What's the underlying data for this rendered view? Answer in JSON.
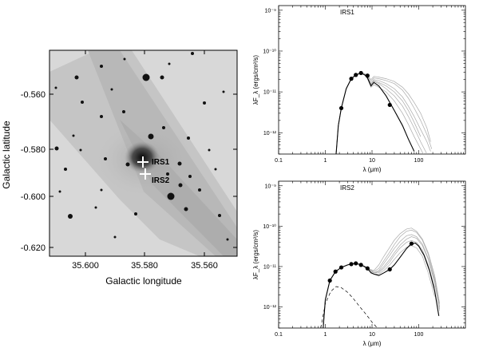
{
  "image_panel": {
    "xlabel": "Galactic longitude",
    "ylabel": "Galactic latitude",
    "xticks": [
      "35.600",
      "35.580",
      "35.560"
    ],
    "yticks": [
      "-0.560",
      "-0.580",
      "-0.600",
      "-0.620"
    ],
    "sources": [
      {
        "label": "IRS1"
      },
      {
        "label": "IRS2"
      }
    ]
  },
  "chart_data": [
    {
      "type": "line",
      "title": "IRS1",
      "xlabel": "λ (μm)",
      "ylabel": "λF_λ (ergs/cm²/s)",
      "x_scale": "log",
      "y_scale": "log",
      "xlim": [
        0.1,
        1000
      ],
      "ylim": [
        3e-13,
        1.3e-09
      ],
      "xticks": [
        "0.1",
        "1",
        "10",
        "100"
      ],
      "yticks": [
        "10⁻⁹",
        "10⁻¹⁰",
        "10⁻¹¹",
        "10⁻¹²"
      ],
      "points": {
        "x": [
          2.2,
          3.6,
          4.5,
          5.8,
          8.0,
          24
        ],
        "y": [
          4e-12,
          2.1e-11,
          2.6e-11,
          2.9e-11,
          2.5e-11,
          4.8e-12
        ]
      },
      "best_fit": {
        "x": [
          1.7,
          1.9,
          2.2,
          2.8,
          3.6,
          4.5,
          5.8,
          7.0,
          8.0,
          9.5,
          11,
          14,
          20,
          30,
          45,
          60,
          80
        ],
        "y": [
          3e-13,
          1.5e-12,
          4e-12,
          1.2e-11,
          2.1e-11,
          2.6e-11,
          2.9e-11,
          2.6e-11,
          2.2e-11,
          1.4e-11,
          1.7e-11,
          1.4e-11,
          8e-12,
          3.5e-12,
          1.5e-12,
          7e-13,
          3.5e-13
        ]
      },
      "grey_fits": [
        {
          "x": [
            1.7,
            1.9,
            2.2,
            2.8,
            3.6,
            4.5,
            5.8,
            7,
            8,
            9.5,
            11,
            14,
            20,
            30,
            45,
            60,
            80,
            110,
            150
          ],
          "y": [
            3e-13,
            1.5e-12,
            4e-12,
            1.2e-11,
            2.1e-11,
            2.6e-11,
            2.9e-11,
            2.6e-11,
            2.2e-11,
            1.4e-11,
            1.8e-11,
            1.6e-11,
            1.2e-11,
            8e-12,
            4.5e-12,
            2.5e-12,
            1.3e-12,
            6e-13,
            3e-13
          ]
        },
        {
          "x": [
            1.7,
            1.9,
            2.2,
            2.8,
            3.6,
            4.5,
            5.8,
            7,
            8,
            9.5,
            11,
            14,
            20,
            30,
            45,
            60,
            80,
            110,
            150,
            180
          ],
          "y": [
            3e-13,
            1.5e-12,
            4e-12,
            1.2e-11,
            2.1e-11,
            2.6e-11,
            2.9e-11,
            2.7e-11,
            2.3e-11,
            1.6e-11,
            2e-11,
            1.9e-11,
            1.6e-11,
            1.2e-11,
            7.5e-12,
            4.5e-12,
            2.5e-12,
            1.2e-12,
            6e-13,
            3.5e-13
          ]
        },
        {
          "x": [
            1.7,
            1.9,
            2.2,
            2.8,
            3.6,
            4.5,
            5.8,
            7,
            8,
            9.5,
            11,
            14,
            20,
            30,
            45,
            60,
            80,
            110,
            150,
            190
          ],
          "y": [
            3e-13,
            1.5e-12,
            4e-12,
            1.2e-11,
            2.1e-11,
            2.6e-11,
            2.9e-11,
            2.7e-11,
            2.4e-11,
            1.8e-11,
            2.2e-11,
            2.1e-11,
            1.9e-11,
            1.6e-11,
            1.1e-11,
            7e-12,
            4e-12,
            2e-12,
            9e-13,
            4e-13
          ]
        },
        {
          "x": [
            1.7,
            1.9,
            2.2,
            2.8,
            3.6,
            4.5,
            5.8,
            7,
            8,
            9.5,
            11,
            14,
            20,
            30,
            45,
            60,
            80,
            110,
            150
          ],
          "y": [
            3e-13,
            1.5e-12,
            4e-12,
            1.2e-11,
            2.1e-11,
            2.6e-11,
            2.9e-11,
            2.6e-11,
            2.1e-11,
            1.3e-11,
            1.5e-11,
            1.3e-11,
            1e-11,
            6e-12,
            3e-12,
            1.6e-12,
            8e-13,
            4e-13,
            2e-13
          ]
        },
        {
          "x": [
            1.7,
            1.9,
            2.2,
            2.8,
            3.6,
            4.5,
            5.8,
            7,
            8,
            9.5,
            11,
            14,
            20,
            30,
            45,
            60,
            80,
            110,
            150,
            180
          ],
          "y": [
            3e-13,
            1.5e-12,
            4e-12,
            1.2e-11,
            2.1e-11,
            2.6e-11,
            2.9e-11,
            2.8e-11,
            2.5e-11,
            2e-11,
            2.4e-11,
            2.3e-11,
            2.1e-11,
            1.8e-11,
            1.3e-11,
            9e-12,
            5.5e-12,
            3e-12,
            1.3e-12,
            6e-13
          ]
        },
        {
          "x": [
            1.7,
            1.9,
            2.2,
            2.8,
            3.6,
            4.5,
            5.8,
            7,
            8,
            9.5,
            11,
            14,
            20,
            30,
            45,
            60,
            80,
            110
          ],
          "y": [
            3e-13,
            1.5e-12,
            4e-12,
            1.2e-11,
            2.1e-11,
            2.6e-11,
            2.9e-11,
            2.6e-11,
            2.2e-11,
            1.5e-11,
            1.9e-11,
            1.7e-11,
            1.4e-11,
            1e-11,
            6e-12,
            3.5e-12,
            1.8e-12,
            8e-13
          ]
        }
      ]
    },
    {
      "type": "line",
      "title": "IRS2",
      "xlabel": "λ (μm)",
      "ylabel": "λF_λ (ergs/cm²/s)",
      "x_scale": "log",
      "y_scale": "log",
      "xlim": [
        0.1,
        1000
      ],
      "ylim": [
        3e-13,
        1.3e-09
      ],
      "xticks": [
        "0.1",
        "1",
        "10",
        "100"
      ],
      "yticks": [
        "10⁻⁹",
        "10⁻¹⁰",
        "10⁻¹¹",
        "10⁻¹²"
      ],
      "points": {
        "x": [
          1.25,
          1.65,
          2.2,
          3.6,
          4.5,
          5.8,
          8.0,
          24,
          70
        ],
        "y": [
          4.5e-12,
          7.5e-12,
          9.5e-12,
          1.15e-11,
          1.2e-11,
          1.1e-11,
          9e-12,
          8.5e-12,
          3.7e-11
        ]
      },
      "best_fit": {
        "x": [
          0.9,
          1.0,
          1.25,
          1.65,
          2.2,
          3.0,
          3.6,
          4.5,
          5.8,
          7,
          8,
          9.5,
          11,
          14,
          18,
          24,
          30,
          40,
          55,
          70,
          85,
          100,
          130,
          170,
          220,
          270
        ],
        "y": [
          3e-13,
          1.5e-12,
          4.5e-12,
          7.5e-12,
          9.5e-12,
          1.1e-11,
          1.15e-11,
          1.2e-11,
          1.1e-11,
          1e-11,
          9e-12,
          7e-12,
          6.5e-12,
          6e-12,
          7e-12,
          8.5e-12,
          1.1e-11,
          1.7e-11,
          2.8e-11,
          3.7e-11,
          3.8e-11,
          3.2e-11,
          1.9e-11,
          8e-12,
          2.5e-12,
          6e-13
        ]
      },
      "grey_fits": [
        {
          "x": [
            0.9,
            1.0,
            1.25,
            1.65,
            2.2,
            3.0,
            4.5,
            5.8,
            8,
            11,
            14,
            18,
            24,
            30,
            40,
            55,
            70,
            90,
            120,
            160,
            220,
            280
          ],
          "y": [
            3e-13,
            1.5e-12,
            4.5e-12,
            7.5e-12,
            9.5e-12,
            1.1e-11,
            1.2e-11,
            1.1e-11,
            9e-12,
            7e-12,
            7.5e-12,
            1e-11,
            1.5e-11,
            2.2e-11,
            3.4e-11,
            4.8e-11,
            5.5e-11,
            5e-11,
            3.3e-11,
            1.5e-11,
            4e-12,
            8e-13
          ]
        },
        {
          "x": [
            0.9,
            1.0,
            1.25,
            1.65,
            2.2,
            3.0,
            4.5,
            5.8,
            8,
            11,
            14,
            18,
            24,
            30,
            40,
            55,
            70,
            90,
            120,
            160,
            220,
            280
          ],
          "y": [
            3e-13,
            1.5e-12,
            4.5e-12,
            7.5e-12,
            9.5e-12,
            1.1e-11,
            1.2e-11,
            1.1e-11,
            9e-12,
            7.5e-12,
            9e-12,
            1.4e-11,
            2.3e-11,
            3.5e-11,
            5.5e-11,
            7.5e-11,
            8e-11,
            7e-11,
            4.5e-11,
            2e-11,
            5e-12,
            1e-12
          ]
        },
        {
          "x": [
            0.9,
            1.0,
            1.25,
            1.65,
            2.2,
            3.0,
            4.5,
            5.8,
            8,
            11,
            14,
            18,
            24,
            30,
            40,
            55,
            70,
            90,
            120,
            160,
            220,
            280
          ],
          "y": [
            3e-13,
            1.5e-12,
            4.5e-12,
            7.5e-12,
            9.5e-12,
            1.1e-11,
            1.2e-11,
            1.1e-11,
            9e-12,
            8e-12,
            1.1e-11,
            1.8e-11,
            3e-11,
            4.5e-11,
            6.5e-11,
            8.5e-11,
            9e-11,
            7.5e-11,
            4.8e-11,
            2.2e-11,
            6e-12,
            1.2e-12
          ]
        },
        {
          "x": [
            0.9,
            1.0,
            1.25,
            1.65,
            2.2,
            3.0,
            4.5,
            5.8,
            8,
            11,
            14,
            18,
            24,
            30,
            40,
            55,
            70,
            90,
            120,
            160,
            220
          ],
          "y": [
            3e-13,
            1.5e-12,
            4.5e-12,
            7.5e-12,
            9.5e-12,
            1.1e-11,
            1.2e-11,
            1.1e-11,
            8.5e-12,
            6.5e-12,
            6.5e-12,
            8e-12,
            1.1e-11,
            1.5e-11,
            2.2e-11,
            3e-11,
            3.3e-11,
            2.9e-11,
            1.8e-11,
            7e-12,
            1.8e-12
          ]
        },
        {
          "x": [
            0.9,
            1.0,
            1.25,
            1.65,
            2.2,
            3.0,
            4.5,
            5.8,
            8,
            11,
            14,
            18,
            24,
            30,
            40,
            55,
            70,
            90,
            120,
            160,
            220,
            280
          ],
          "y": [
            3e-13,
            1.5e-12,
            4.5e-12,
            7.5e-12,
            9.5e-12,
            1.1e-11,
            1.2e-11,
            1.1e-11,
            9e-12,
            7e-12,
            8e-12,
            1.2e-11,
            1.9e-11,
            2.8e-11,
            4.2e-11,
            5.8e-11,
            6.2e-11,
            5.5e-11,
            3.6e-11,
            1.6e-11,
            4.5e-12,
            9e-13
          ]
        },
        {
          "x": [
            0.9,
            1.0,
            1.25,
            1.65,
            2.2,
            3.0,
            4.5,
            5.8,
            8,
            11,
            14,
            18,
            24,
            30,
            40,
            55,
            70,
            90,
            120,
            160,
            220
          ],
          "y": [
            3e-13,
            1.5e-12,
            4.5e-12,
            7.5e-12,
            9.5e-12,
            1.1e-11,
            1.2e-11,
            1.1e-11,
            9e-12,
            7e-12,
            7e-12,
            9e-12,
            1.3e-11,
            1.9e-11,
            2.9e-11,
            4e-11,
            4.4e-11,
            4e-11,
            2.6e-11,
            1.1e-11,
            3e-12
          ]
        }
      ],
      "photosphere": {
        "x": [
          0.8,
          1.0,
          1.3,
          1.7,
          2.2,
          3.0,
          4.0,
          5.5,
          7.5,
          10,
          13
        ],
        "y": [
          3e-13,
          1.2e-12,
          2.4e-12,
          3.2e-12,
          3e-12,
          2.3e-12,
          1.6e-12,
          1e-12,
          6.5e-13,
          4.2e-13,
          3e-13
        ]
      }
    }
  ]
}
